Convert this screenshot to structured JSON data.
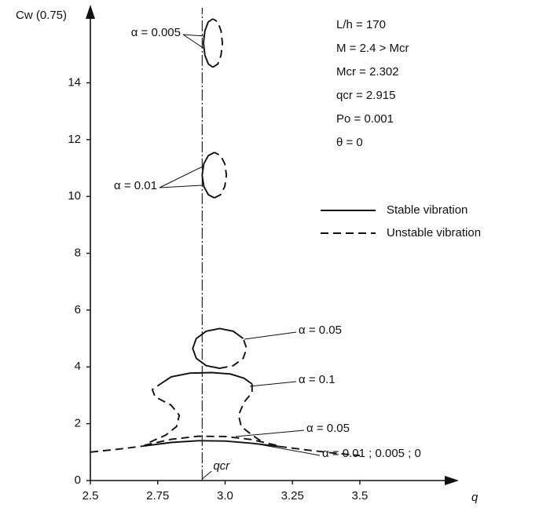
{
  "chart_data": {
    "type": "line",
    "y_label": "Cw (0.75)",
    "x_label": "q",
    "xlim": [
      2.5,
      3.85
    ],
    "ylim": [
      0,
      16.5
    ],
    "xticks": [
      2.5,
      2.75,
      {
        "value": 3,
        "label": "3.0"
      },
      3.25,
      3.5
    ],
    "yticks": [
      0,
      2,
      4,
      6,
      8,
      10,
      12,
      14
    ],
    "critical_line": {
      "x": 2.915,
      "label": "qcr"
    },
    "parameters": [
      "L/h = 170",
      "M = 2.4 > Mcr",
      "Mcr = 2.302",
      "qcr = 2.915",
      "Po = 0.001",
      "θ = 0"
    ],
    "legend": [
      {
        "label": "Stable vibration",
        "style": "solid"
      },
      {
        "label": "Unstable vibration",
        "style": "dashed"
      }
    ],
    "annotations": [
      "α = 0.005",
      "α = 0.01",
      "α = 0.05",
      "α = 0.1",
      "α = 0.05",
      "α = 0.01 ; 0.005 ; 0"
    ],
    "series": [
      {
        "style": "dashed",
        "color": "#111111",
        "x": [
          2.5,
          2.6,
          2.7,
          2.95,
          3.2,
          3.3,
          3.4,
          3.5
        ],
        "values": [
          1.0,
          1.1,
          1.22,
          null,
          1.2,
          1.08,
          0.97,
          0.88
        ]
      },
      {
        "style": "solid",
        "color": "#111111",
        "x": [
          2.7,
          2.8,
          2.9,
          3.0,
          3.1,
          3.2
        ],
        "values": [
          1.22,
          1.34,
          1.4,
          1.39,
          1.31,
          1.2
        ]
      },
      {
        "style": "dashed",
        "color": "#111111",
        "x": [
          2.7,
          2.8,
          2.9,
          3.0,
          3.1,
          3.2
        ],
        "values": [
          1.24,
          1.45,
          1.56,
          1.55,
          1.44,
          1.22
        ]
      },
      {
        "style": "solid",
        "color": "#111111",
        "x": [
          2.76,
          2.8,
          2.87,
          2.95,
          3.02,
          3.07,
          3.1
        ],
        "values": [
          3.4,
          3.65,
          3.78,
          3.8,
          3.75,
          3.6,
          3.4
        ]
      },
      {
        "style": "dashed",
        "color": "#111111",
        "x": [
          2.72,
          2.78,
          2.82,
          2.83,
          2.8,
          2.74,
          2.73,
          2.76,
          2.9,
          3.1,
          3.1,
          3.07,
          3.05,
          3.06,
          3.1,
          3.14
        ],
        "values": [
          1.35,
          1.6,
          1.9,
          2.3,
          2.65,
          2.95,
          3.2,
          3.4,
          null,
          3.4,
          3.1,
          2.75,
          2.3,
          1.9,
          1.6,
          1.35
        ]
      },
      {
        "style": "solid",
        "color": "#111111",
        "x": [
          3.067,
          3.03,
          2.98,
          2.93,
          2.893,
          2.88,
          2.893,
          2.93,
          2.98
        ],
        "values": [
          5.0,
          5.256,
          5.35,
          5.256,
          5.0,
          4.65,
          4.3,
          4.044,
          3.95
        ]
      },
      {
        "style": "dashed",
        "color": "#111111",
        "x": [
          2.98,
          3.03,
          3.067,
          3.08,
          3.067
        ],
        "values": [
          3.95,
          4.044,
          4.3,
          4.65,
          5.0
        ]
      },
      {
        "style": "solid",
        "color": "#111111",
        "x": [
          2.96,
          2.938,
          2.921,
          2.915,
          2.921,
          2.938,
          2.96
        ],
        "values": [
          11.55,
          11.44,
          11.15,
          10.75,
          10.35,
          10.06,
          9.95
        ]
      },
      {
        "style": "dashed",
        "color": "#111111",
        "x": [
          2.96,
          2.983,
          2.999,
          3.005,
          2.999,
          2.983,
          2.96
        ],
        "values": [
          9.95,
          10.06,
          10.35,
          10.75,
          11.15,
          11.44,
          11.55
        ]
      },
      {
        "style": "solid",
        "color": "#111111",
        "x": [
          2.955,
          2.9375,
          2.925,
          2.92,
          2.925,
          2.938,
          2.955
        ],
        "values": [
          16.25,
          16.14,
          15.83,
          15.4,
          14.97,
          14.66,
          14.55
        ]
      },
      {
        "style": "dashed",
        "color": "#111111",
        "x": [
          2.955,
          2.973,
          2.985,
          2.99,
          2.985,
          2.973,
          2.955
        ],
        "values": [
          14.55,
          14.66,
          14.97,
          15.4,
          15.83,
          16.14,
          16.25
        ]
      }
    ]
  }
}
